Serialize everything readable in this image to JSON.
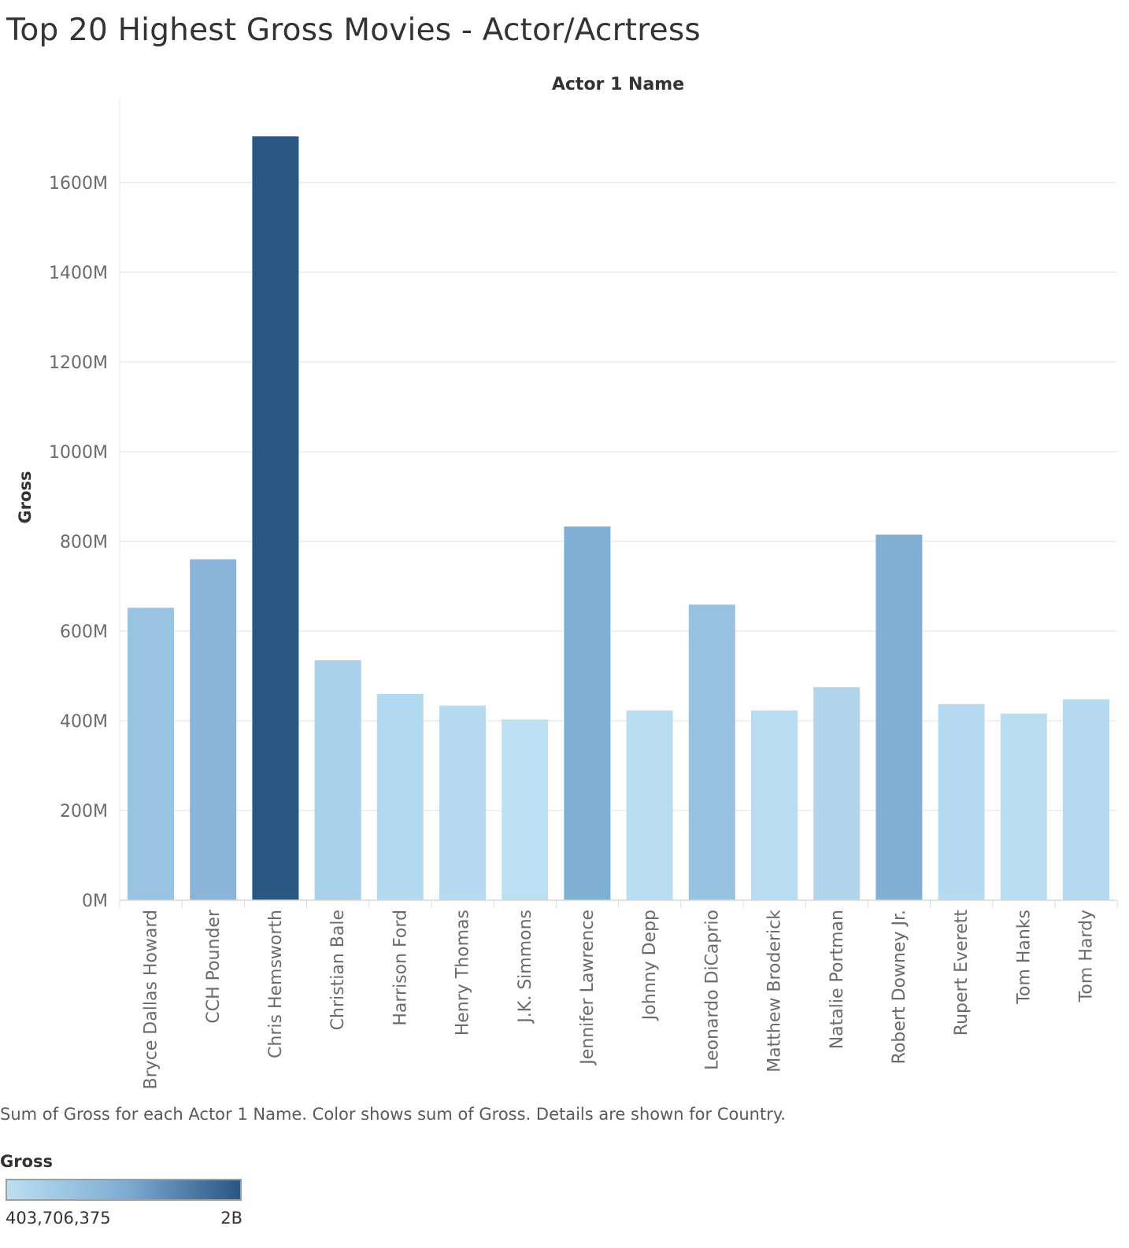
{
  "title": "Top 20 Highest Gross Movies - Actor/Acrtress",
  "caption": "Sum of Gross for each Actor 1 Name.  Color shows sum of Gross.  Details are shown for Country.",
  "legend": {
    "title": "Gross",
    "min_label": "403,706,375",
    "max_label": "2B",
    "color_low": "#bcdff1",
    "color_high": "#2a5783"
  },
  "colors": {
    "gridline": "#ececec",
    "axis_text": "#6b6b6b",
    "header_text": "#333333"
  },
  "chart_data": {
    "type": "bar",
    "title": "Top 20 Highest Gross Movies - Actor/Acrtress",
    "header": "Actor 1 Name",
    "xlabel": "",
    "ylabel": "Gross",
    "ylim": [
      0,
      1800
    ],
    "yticks": [
      0,
      200,
      400,
      600,
      800,
      1000,
      1200,
      1400,
      1600
    ],
    "ytick_labels": [
      "0M",
      "200M",
      "400M",
      "600M",
      "800M",
      "1000M",
      "1200M",
      "1400M",
      "1600M"
    ],
    "grid": true,
    "categories": [
      "Bryce Dallas Howard",
      "CCH Pounder",
      "Chris Hemsworth",
      "Christian Bale",
      "Harrison Ford",
      "Henry Thomas",
      "J.K. Simmons",
      "Jennifer Lawrence",
      "Johnny Depp",
      "Leonardo DiCaprio",
      "Matthew Broderick",
      "Natalie Portman",
      "Robert Downey Jr.",
      "Rupert Everett",
      "Tom Hanks",
      "Tom Hardy"
    ],
    "values": [
      652,
      760,
      1703,
      535,
      460,
      434,
      403,
      833,
      423,
      659,
      423,
      475,
      815,
      437,
      416,
      448
    ],
    "value_unit": "M",
    "colors": [
      "#99c3e1",
      "#8ab5d8",
      "#2b5783",
      "#a9d2ea",
      "#b3d9ee",
      "#b6daef",
      "#bcdff1",
      "#80afd4",
      "#b8dcf0",
      "#98c3e0",
      "#b8dcf0",
      "#b1d6ec",
      "#82b0d5",
      "#b6daef",
      "#b9ddf0",
      "#b5d9ee"
    ]
  }
}
